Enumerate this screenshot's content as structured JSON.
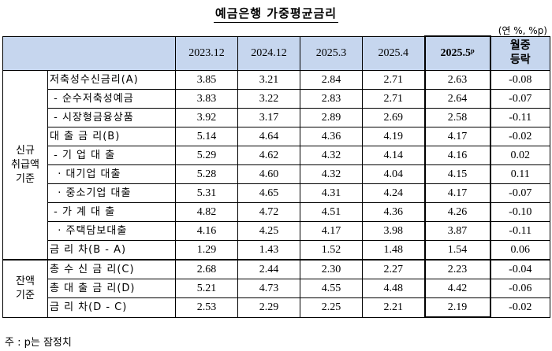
{
  "title": "예금은행 가중평균금리",
  "unit": "(연 %, %p)",
  "headers": [
    "2023.12",
    "2024.12",
    "2025.3",
    "2025.4",
    "2025.5ᵖ",
    "월중\n등락"
  ],
  "groups": {
    "new": "신규\n취급액\n기준",
    "balance": "잔액\n기준"
  },
  "rows": [
    {
      "label": "저축성수신금리(A)",
      "values": [
        "3.85",
        "3.21",
        "2.84",
        "2.71",
        "2.63",
        "-0.08"
      ]
    },
    {
      "label": " - 순수저축성예금",
      "values": [
        "3.83",
        "3.22",
        "2.83",
        "2.71",
        "2.64",
        "-0.07"
      ]
    },
    {
      "label": " - 시장형금융상품",
      "values": [
        "3.92",
        "3.17",
        "2.89",
        "2.69",
        "2.58",
        "-0.11"
      ]
    },
    {
      "label": "대 출 금 리(B)",
      "values": [
        "5.14",
        "4.64",
        "4.36",
        "4.19",
        "4.17",
        "-0.02"
      ]
    },
    {
      "label": " - 기 업 대 출",
      "values": [
        "5.29",
        "4.62",
        "4.32",
        "4.14",
        "4.16",
        "0.02"
      ]
    },
    {
      "label": "  · 대기업 대출",
      "values": [
        "5.28",
        "4.60",
        "4.32",
        "4.04",
        "4.15",
        "0.11"
      ]
    },
    {
      "label": "  · 중소기업 대출",
      "values": [
        "5.31",
        "4.65",
        "4.31",
        "4.24",
        "4.17",
        "-0.07"
      ]
    },
    {
      "label": " - 가 계 대 출",
      "values": [
        "4.82",
        "4.72",
        "4.51",
        "4.36",
        "4.26",
        "-0.10"
      ]
    },
    {
      "label": "  · 주택담보대출",
      "values": [
        "4.16",
        "4.25",
        "4.17",
        "3.98",
        "3.87",
        "-0.11"
      ]
    },
    {
      "label": "금 리 차(B - A)",
      "values": [
        "1.29",
        "1.43",
        "1.52",
        "1.48",
        "1.54",
        "0.06"
      ]
    },
    {
      "label": "총 수 신 금 리(C)",
      "values": [
        "2.68",
        "2.44",
        "2.30",
        "2.27",
        "2.23",
        "-0.04"
      ]
    },
    {
      "label": "총 대 출 금 리(D)",
      "values": [
        "5.21",
        "4.73",
        "4.55",
        "4.48",
        "4.42",
        "-0.06"
      ]
    },
    {
      "label": "금 리 차(D - C)",
      "values": [
        "2.53",
        "2.29",
        "2.25",
        "2.21",
        "2.19",
        "-0.02"
      ]
    }
  ],
  "note": "주 : p는 잠정치"
}
